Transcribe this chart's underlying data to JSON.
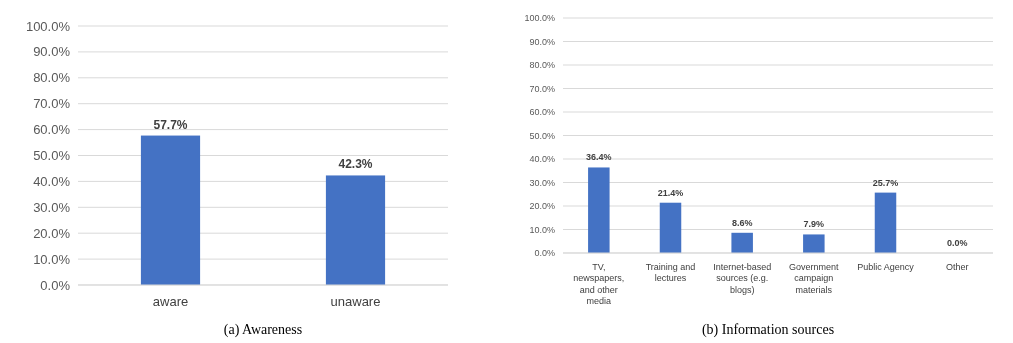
{
  "chart_data": [
    {
      "type": "bar",
      "title": "(a)  Awareness",
      "categories": [
        "aware",
        "unaware"
      ],
      "values": [
        57.7,
        42.3
      ],
      "color": "#4472c4",
      "value_labels": [
        "57.7%",
        "42.3%"
      ],
      "ylim": [
        0,
        100
      ],
      "yticks": [
        {
          "value": 0,
          "label": "0.0%"
        },
        {
          "value": 10,
          "label": "10.0%"
        },
        {
          "value": 20,
          "label": "20.0%"
        },
        {
          "value": 30,
          "label": "30.0%"
        },
        {
          "value": 40,
          "label": "40.0%"
        },
        {
          "value": 50,
          "label": "50.0%"
        },
        {
          "value": 60,
          "label": "60.0%"
        },
        {
          "value": 70,
          "label": "70.0%"
        },
        {
          "value": 80,
          "label": "80.0%"
        },
        {
          "value": 90,
          "label": "90.0%"
        },
        {
          "value": 100,
          "label": "100.0%"
        }
      ],
      "grid": "y"
    },
    {
      "type": "bar",
      "title": "(b)  Information sources",
      "categories": [
        "TV, newspapers, and other media",
        "Training and lectures",
        "Internet-based sources (e.g. blogs)",
        "Government campaign materials",
        "Public Agency",
        "Other"
      ],
      "values": [
        36.4,
        21.4,
        8.6,
        7.9,
        25.7,
        0.0
      ],
      "color": "#4472c4",
      "value_labels": [
        "36.4%",
        "21.4%",
        "8.6%",
        "7.9%",
        "25.7%",
        "0.0%"
      ],
      "ylim": [
        0,
        100
      ],
      "yticks": [
        {
          "value": 0,
          "label": "0.0%"
        },
        {
          "value": 10,
          "label": "10.0%"
        },
        {
          "value": 20,
          "label": "20.0%"
        },
        {
          "value": 30,
          "label": "30.0%"
        },
        {
          "value": 40,
          "label": "40.0%"
        },
        {
          "value": 50,
          "label": "50.0%"
        },
        {
          "value": 60,
          "label": "60.0%"
        },
        {
          "value": 70,
          "label": "70.0%"
        },
        {
          "value": 80,
          "label": "80.0%"
        },
        {
          "value": 90,
          "label": "90.0%"
        },
        {
          "value": 100,
          "label": "100.0%"
        }
      ],
      "grid": "y"
    }
  ]
}
